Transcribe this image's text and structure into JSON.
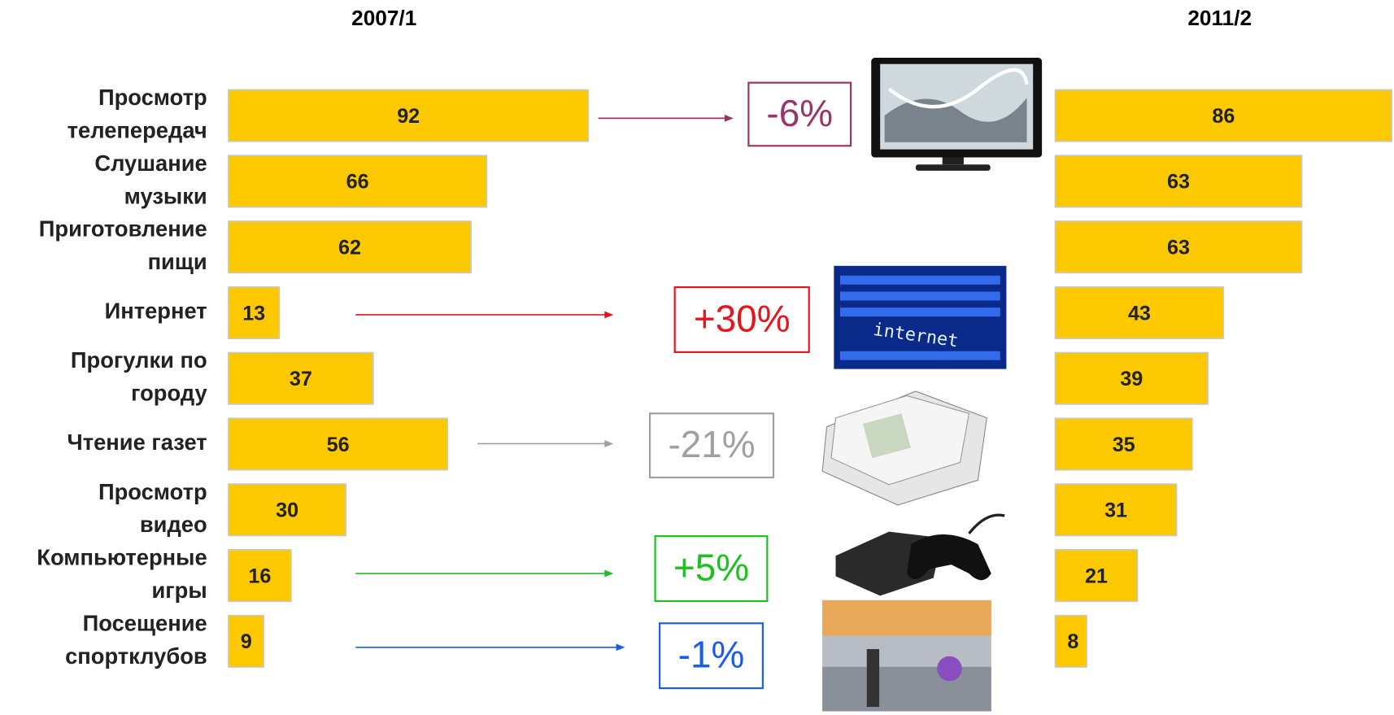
{
  "chart_data": {
    "type": "bar",
    "categories": [
      [
        "Просмотр",
        "телепередач"
      ],
      [
        "Слушание",
        "музыки"
      ],
      [
        "Приготовление",
        "пищи"
      ],
      [
        "Интернет"
      ],
      [
        "Прогулки по",
        "городу"
      ],
      [
        "Чтение газет"
      ],
      [
        "Просмотр",
        "видео"
      ],
      [
        "Компьютерные",
        "игры"
      ],
      [
        "Посещение",
        "спортклубов"
      ]
    ],
    "series": [
      {
        "name": "2007/1",
        "color": "#fcc800",
        "values": [
          92,
          66,
          62,
          13,
          37,
          56,
          30,
          16,
          9
        ]
      },
      {
        "name": "2011/2",
        "color": "#fcc800",
        "values": [
          86,
          63,
          63,
          43,
          39,
          35,
          31,
          21,
          8
        ]
      }
    ],
    "annotations": [
      {
        "text": "-6%",
        "color": "#9b3566"
      },
      {
        "text": "+30%",
        "color": "#e8141b"
      },
      {
        "text": "-21%",
        "color": "#a0a0a0"
      },
      {
        "text": "+5%",
        "color": "#1fbf1f"
      },
      {
        "text": "-1%",
        "color": "#1a5ee8"
      }
    ]
  }
}
